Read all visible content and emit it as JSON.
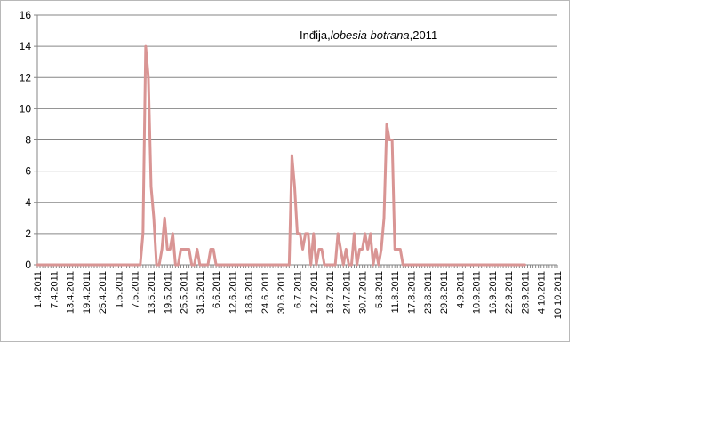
{
  "chart_data": {
    "type": "line",
    "title_parts": [
      {
        "text": "Inđija,",
        "italic": false
      },
      {
        "text": "lobesia  botrana",
        "italic": true
      },
      {
        "text": ",2011",
        "italic": false
      }
    ],
    "xlabel": "",
    "ylabel": "",
    "ylim": [
      0,
      16
    ],
    "yticks": [
      "0",
      "2",
      "4",
      "6",
      "8",
      "10",
      "12",
      "14",
      "16"
    ],
    "grid": true,
    "legend": "none",
    "line_color": "#d99594",
    "x_start": "1.4.2011",
    "x_end": "10.10.2011",
    "x_tick_labels": [
      "1.4.2011",
      "7.4.2011",
      "13.4.2011",
      "19.4.2011",
      "25.4.2011",
      "1.5.2011",
      "7.5.2011",
      "13.5.2011",
      "19.5.2011",
      "25.5.2011",
      "31.5.2011",
      "6.6.2011",
      "12.6.2011",
      "18.6.2011",
      "24.6.2011",
      "30.6.2011",
      "6.7.2011",
      "12.7.2011",
      "18.7.2011",
      "24.7.2011",
      "30.7.2011",
      "5.8.2011",
      "11.8.2011",
      "17.8.2011",
      "23.8.2011",
      "29.8.2011",
      "4.9.2011",
      "10.9.2011",
      "16.9.2011",
      "22.9.2011",
      "28.9.2011",
      "4.10.2011",
      "10.10.2011"
    ],
    "series": [
      {
        "x": [
          "4.5.2011",
          "9.5.2011",
          "10.5.2011",
          "11.5.2011",
          "12.5.2011",
          "13.5.2011",
          "14.5.2011",
          "15.5.2011",
          "16.5.2011",
          "17.5.2011",
          "18.5.2011",
          "19.5.2011",
          "20.5.2011",
          "21.5.2011",
          "22.5.2011",
          "23.5.2011",
          "24.5.2011",
          "25.5.2011",
          "26.5.2011",
          "27.5.2011",
          "28.5.2011",
          "29.5.2011",
          "30.5.2011",
          "31.5.2011",
          "1.6.2011",
          "2.6.2011",
          "3.6.2011",
          "4.6.2011",
          "5.6.2011",
          "6.6.2011",
          "7.6.2011",
          "8.6.2011",
          "3.7.2011",
          "4.7.2011",
          "5.7.2011",
          "6.7.2011",
          "7.7.2011",
          "8.7.2011",
          "9.7.2011",
          "10.7.2011",
          "11.7.2011",
          "12.7.2011",
          "13.7.2011",
          "14.7.2011",
          "15.7.2011",
          "16.7.2011",
          "17.7.2011",
          "18.7.2011",
          "19.7.2011",
          "20.7.2011",
          "21.7.2011",
          "22.7.2011",
          "23.7.2011",
          "24.7.2011",
          "25.7.2011",
          "26.7.2011",
          "27.7.2011",
          "28.7.2011",
          "29.7.2011",
          "30.7.2011",
          "31.7.2011",
          "1.8.2011",
          "2.8.2011",
          "3.8.2011",
          "4.8.2011",
          "5.8.2011",
          "6.8.2011",
          "7.8.2011",
          "8.8.2011",
          "9.8.2011",
          "10.8.2011",
          "11.8.2011",
          "12.8.2011",
          "13.8.2011",
          "14.8.2011",
          "15.8.2011",
          "16.8.2011",
          "17.8.2011",
          "18.8.2011",
          "19.8.2011",
          "20.8.2011",
          "21.8.2011",
          "22.8.2011",
          "28.9.2011"
        ],
        "values": [
          0,
          0,
          2,
          14,
          12,
          5,
          3,
          0,
          0,
          1,
          3,
          1,
          1,
          2,
          0,
          0,
          1,
          1,
          1,
          1,
          0,
          0,
          1,
          0,
          0,
          0,
          0,
          1,
          1,
          0,
          0,
          0,
          0,
          7,
          5,
          2,
          2,
          1,
          2,
          2,
          0,
          2,
          0,
          1,
          1,
          0,
          0,
          0,
          0,
          0,
          2,
          1,
          0,
          1,
          0,
          0,
          2,
          0,
          1,
          1,
          2,
          1,
          2,
          0,
          1,
          0,
          1,
          3,
          9,
          8,
          8,
          1,
          1,
          1,
          0,
          0,
          0,
          0,
          0,
          0,
          0,
          0,
          0,
          0
        ]
      }
    ]
  }
}
